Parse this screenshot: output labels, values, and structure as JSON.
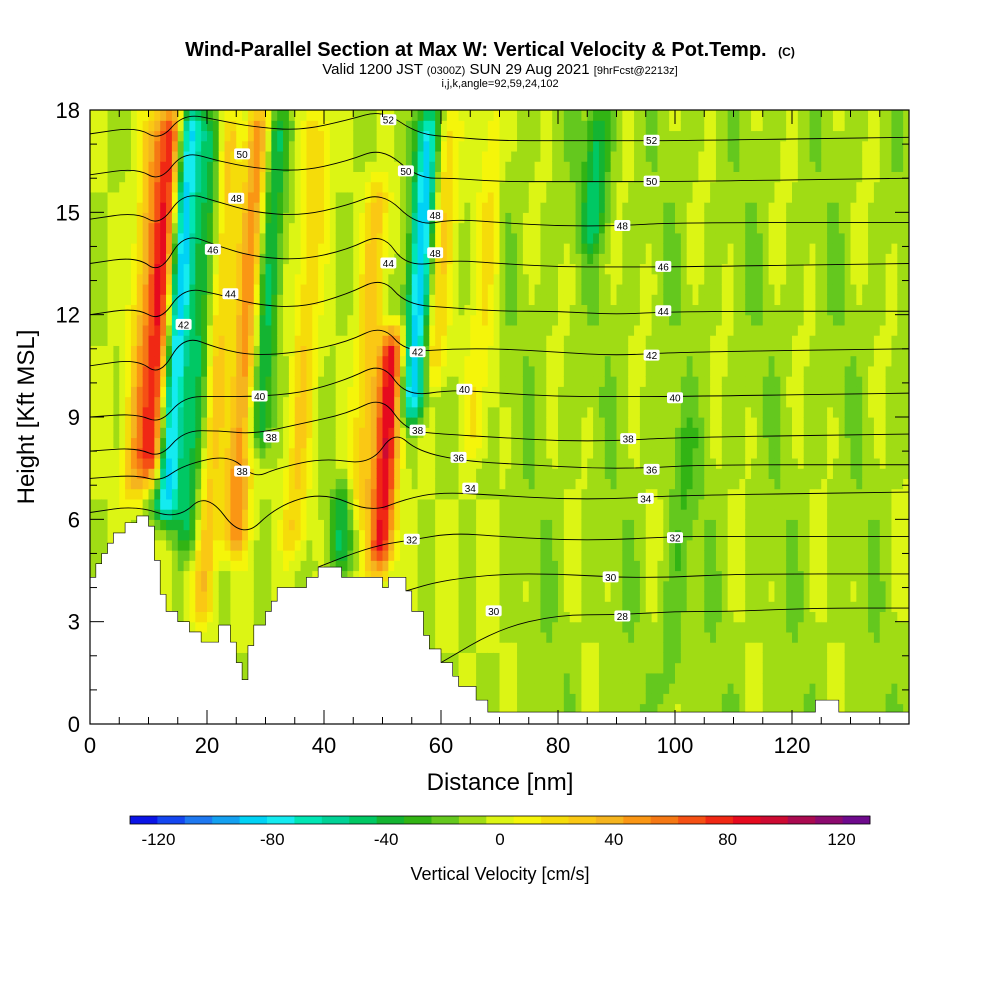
{
  "chart_data": {
    "type": "heatmap",
    "title": "Wind-Parallel Section at Max W: Vertical Velocity & Pot.Temp.",
    "title_mark": "(C)",
    "subtitle_parts": [
      "Valid 1200 JST ",
      "(0300Z)",
      " SUN 29 Aug 2021 ",
      "[9hrFcst@2213z]"
    ],
    "subtitle2": "i,j,k,angle=92,59,24,102",
    "xlabel": "Distance [nm]",
    "ylabel": "Height [Kft MSL]",
    "xlim": [
      0,
      140
    ],
    "ylim": [
      0,
      18
    ],
    "xticks": [
      0,
      20,
      40,
      60,
      80,
      100,
      120
    ],
    "yticks": [
      0,
      3,
      6,
      9,
      12,
      15,
      18
    ],
    "grid": false,
    "colorbar": {
      "label": "Vertical Velocity [cm/s]",
      "range": [
        -130,
        130
      ],
      "step": 10,
      "ticks": [
        -120,
        -80,
        -40,
        0,
        40,
        80,
        120
      ],
      "colors": [
        "#0a14e6",
        "#1446f0",
        "#1e78f0",
        "#14a0f0",
        "#00d2f5",
        "#14ebf0",
        "#00e6b4",
        "#00d296",
        "#00c864",
        "#14b432",
        "#32b414",
        "#64c81e",
        "#a0dc14",
        "#dcf514",
        "#f5f50a",
        "#f5dc0a",
        "#fac814",
        "#f5b41e",
        "#fa9614",
        "#f57814",
        "#f55014",
        "#f02814",
        "#e60a1e",
        "#cd0a32",
        "#aa0a50",
        "#8c0a6e",
        "#6e0a8c"
      ]
    },
    "terrain": [
      [
        0,
        4.3
      ],
      [
        1,
        4.3
      ],
      [
        1,
        4.7
      ],
      [
        2,
        4.7
      ],
      [
        2,
        5.0
      ],
      [
        3,
        5.0
      ],
      [
        3,
        5.3
      ],
      [
        4,
        5.3
      ],
      [
        4,
        5.6
      ],
      [
        6,
        5.6
      ],
      [
        6,
        5.9
      ],
      [
        8,
        5.9
      ],
      [
        8,
        6.1
      ],
      [
        10,
        6.1
      ],
      [
        10,
        5.8
      ],
      [
        11,
        5.8
      ],
      [
        11,
        4.8
      ],
      [
        12,
        4.8
      ],
      [
        12,
        3.8
      ],
      [
        13,
        3.8
      ],
      [
        13,
        3.3
      ],
      [
        15,
        3.3
      ],
      [
        15,
        3.0
      ],
      [
        17,
        3.0
      ],
      [
        17,
        2.7
      ],
      [
        19,
        2.7
      ],
      [
        19,
        2.4
      ],
      [
        22,
        2.4
      ],
      [
        22,
        2.9
      ],
      [
        24,
        2.9
      ],
      [
        24,
        2.4
      ],
      [
        25,
        2.4
      ],
      [
        25,
        1.8
      ],
      [
        26,
        1.8
      ],
      [
        26,
        1.3
      ],
      [
        27,
        1.3
      ],
      [
        27,
        2.3
      ],
      [
        28,
        2.3
      ],
      [
        28,
        2.9
      ],
      [
        30,
        2.9
      ],
      [
        30,
        3.3
      ],
      [
        31,
        3.3
      ],
      [
        31,
        3.6
      ],
      [
        32,
        3.6
      ],
      [
        32,
        4.0
      ],
      [
        37,
        4.0
      ],
      [
        37,
        4.3
      ],
      [
        39,
        4.3
      ],
      [
        39,
        4.6
      ],
      [
        43,
        4.6
      ],
      [
        43,
        4.3
      ],
      [
        50,
        4.3
      ],
      [
        50,
        4.0
      ],
      [
        51,
        4.0
      ],
      [
        51,
        4.3
      ],
      [
        54,
        4.3
      ],
      [
        54,
        3.9
      ],
      [
        55,
        3.9
      ],
      [
        55,
        3.3
      ],
      [
        57,
        3.3
      ],
      [
        57,
        2.6
      ],
      [
        58,
        2.6
      ],
      [
        58,
        2.2
      ],
      [
        60,
        2.2
      ],
      [
        60,
        1.8
      ],
      [
        62,
        1.8
      ],
      [
        62,
        1.4
      ],
      [
        63,
        1.4
      ],
      [
        63,
        1.1
      ],
      [
        66,
        1.1
      ],
      [
        66,
        0.7
      ],
      [
        68,
        0.7
      ],
      [
        68,
        0.35
      ],
      [
        124,
        0.35
      ],
      [
        124,
        0.7
      ],
      [
        128,
        0.7
      ],
      [
        128,
        0.35
      ],
      [
        140,
        0.35
      ]
    ],
    "updraft_cores": [
      {
        "x": 11,
        "hi": 18,
        "lo": 7.2,
        "w": 90
      },
      {
        "x": 26,
        "hi": 18,
        "lo": 5.0,
        "w": 60
      },
      {
        "x": 51,
        "hi": 11.5,
        "lo": 4.5,
        "w": 95
      },
      {
        "x": 8,
        "hi": 18,
        "lo": 6.5,
        "w": 40
      },
      {
        "x": 47,
        "hi": 16,
        "lo": 6.0,
        "w": 35
      },
      {
        "x": 58,
        "hi": 18,
        "lo": 10.0,
        "w": 35
      },
      {
        "x": 36,
        "hi": 18,
        "lo": 5.0,
        "w": 30
      },
      {
        "x": 21,
        "hi": 18,
        "lo": 3.0,
        "w": 35
      },
      {
        "x": 66,
        "hi": 18,
        "lo": 8.0,
        "w": 20
      }
    ],
    "downdraft_cores": [
      {
        "x": 14,
        "hi": 18,
        "lo": 6.0,
        "w": -90
      },
      {
        "x": 55,
        "hi": 18,
        "lo": 9.0,
        "w": -90
      },
      {
        "x": 29,
        "hi": 18,
        "lo": 8.0,
        "w": -45
      },
      {
        "x": 18,
        "hi": 18,
        "lo": 5.0,
        "w": -40
      },
      {
        "x": 44,
        "hi": 7.0,
        "lo": 4.5,
        "w": -40
      },
      {
        "x": 84,
        "hi": 18,
        "lo": 14.0,
        "w": -40
      },
      {
        "x": 102,
        "hi": 9.0,
        "lo": 0.5,
        "w": -15
      }
    ],
    "theta_contours": [
      {
        "label": "28",
        "lx": 91,
        "ly": 3.15,
        "pts": [
          [
            60,
            1.8
          ],
          [
            70,
            2.8
          ],
          [
            80,
            3.2
          ],
          [
            90,
            3.2
          ],
          [
            100,
            3.3
          ],
          [
            110,
            3.3
          ],
          [
            124,
            3.4
          ],
          [
            140,
            3.4
          ]
        ]
      },
      {
        "label": "30",
        "lx": 89,
        "ly": 4.3,
        "pts": [
          [
            54,
            3.9
          ],
          [
            60,
            4.2
          ],
          [
            70,
            4.4
          ],
          [
            80,
            4.4
          ],
          [
            90,
            4.3
          ],
          [
            100,
            4.3
          ],
          [
            110,
            4.4
          ],
          [
            140,
            4.4
          ]
        ]
      },
      {
        "label": "32",
        "lx": 100,
        "ly": 5.45,
        "pts": [
          [
            39,
            4.6
          ],
          [
            48,
            5.2
          ],
          [
            55,
            5.4
          ],
          [
            62,
            5.6
          ],
          [
            70,
            5.5
          ],
          [
            80,
            5.4
          ],
          [
            90,
            5.4
          ],
          [
            100,
            5.5
          ],
          [
            110,
            5.5
          ],
          [
            140,
            5.5
          ]
        ]
      },
      {
        "label": "34",
        "lx": 95,
        "ly": 6.6,
        "pts": [
          [
            0,
            6.2
          ],
          [
            8,
            6.4
          ],
          [
            15,
            6.0
          ],
          [
            20,
            6.8
          ],
          [
            26,
            5.4
          ],
          [
            32,
            6.4
          ],
          [
            40,
            6.8
          ],
          [
            48,
            6.2
          ],
          [
            54,
            6.6
          ],
          [
            60,
            6.8
          ],
          [
            70,
            6.7
          ],
          [
            80,
            6.6
          ],
          [
            90,
            6.6
          ],
          [
            100,
            6.7
          ],
          [
            140,
            6.8
          ]
        ]
      },
      {
        "label": "36",
        "lx": 96,
        "ly": 7.45,
        "pts": [
          [
            0,
            7.2
          ],
          [
            8,
            7.3
          ],
          [
            12,
            7.1
          ],
          [
            16,
            7.6
          ],
          [
            24,
            7.9
          ],
          [
            28,
            7.2
          ],
          [
            32,
            7.5
          ],
          [
            40,
            7.8
          ],
          [
            48,
            7.6
          ],
          [
            52,
            8.6
          ],
          [
            56,
            8.0
          ],
          [
            64,
            7.7
          ],
          [
            75,
            7.6
          ],
          [
            85,
            7.5
          ],
          [
            95,
            7.5
          ],
          [
            105,
            7.6
          ],
          [
            140,
            7.6
          ]
        ]
      },
      {
        "label": "38",
        "lx": 92,
        "ly": 8.35,
        "pts": [
          [
            0,
            8.0
          ],
          [
            8,
            8.1
          ],
          [
            12,
            7.8
          ],
          [
            16,
            8.6
          ],
          [
            22,
            8.6
          ],
          [
            28,
            8.5
          ],
          [
            36,
            8.8
          ],
          [
            44,
            9.1
          ],
          [
            50,
            9.6
          ],
          [
            54,
            8.6
          ],
          [
            60,
            8.5
          ],
          [
            70,
            8.4
          ],
          [
            80,
            8.3
          ],
          [
            90,
            8.3
          ],
          [
            100,
            8.4
          ],
          [
            140,
            8.5
          ]
        ]
      },
      {
        "label": "40",
        "lx": 100,
        "ly": 9.55,
        "pts": [
          [
            0,
            9.0
          ],
          [
            8,
            9.1
          ],
          [
            12,
            8.8
          ],
          [
            16,
            9.6
          ],
          [
            22,
            9.6
          ],
          [
            28,
            9.6
          ],
          [
            36,
            9.7
          ],
          [
            44,
            10.1
          ],
          [
            50,
            10.6
          ],
          [
            54,
            9.6
          ],
          [
            62,
            9.8
          ],
          [
            70,
            9.7
          ],
          [
            80,
            9.6
          ],
          [
            90,
            9.6
          ],
          [
            100,
            9.6
          ],
          [
            140,
            9.7
          ]
        ]
      },
      {
        "label": "42",
        "lx": 96,
        "ly": 10.8,
        "pts": [
          [
            0,
            10.5
          ],
          [
            8,
            10.7
          ],
          [
            12,
            10.2
          ],
          [
            16,
            11.4
          ],
          [
            22,
            11.0
          ],
          [
            28,
            10.8
          ],
          [
            36,
            10.9
          ],
          [
            44,
            11.2
          ],
          [
            50,
            11.7
          ],
          [
            54,
            10.9
          ],
          [
            62,
            11.0
          ],
          [
            70,
            11.0
          ],
          [
            80,
            10.9
          ],
          [
            90,
            10.8
          ],
          [
            100,
            10.9
          ],
          [
            140,
            11.0
          ]
        ]
      },
      {
        "label": "44",
        "lx": 98,
        "ly": 12.1,
        "pts": [
          [
            0,
            12.0
          ],
          [
            8,
            12.2
          ],
          [
            12,
            11.8
          ],
          [
            16,
            12.8
          ],
          [
            22,
            12.6
          ],
          [
            28,
            12.3
          ],
          [
            36,
            12.2
          ],
          [
            44,
            12.6
          ],
          [
            50,
            13.1
          ],
          [
            54,
            12.3
          ],
          [
            62,
            12.2
          ],
          [
            70,
            12.1
          ],
          [
            80,
            12.1
          ],
          [
            90,
            12.0
          ],
          [
            100,
            12.1
          ],
          [
            140,
            12.1
          ]
        ]
      },
      {
        "label": "46",
        "lx": 98,
        "ly": 13.4,
        "pts": [
          [
            0,
            13.5
          ],
          [
            8,
            13.7
          ],
          [
            12,
            13.2
          ],
          [
            16,
            14.4
          ],
          [
            22,
            14.0
          ],
          [
            28,
            13.7
          ],
          [
            36,
            13.6
          ],
          [
            44,
            13.9
          ],
          [
            50,
            14.4
          ],
          [
            54,
            13.4
          ],
          [
            62,
            13.6
          ],
          [
            70,
            13.5
          ],
          [
            80,
            13.4
          ],
          [
            90,
            13.4
          ],
          [
            100,
            13.4
          ],
          [
            140,
            13.5
          ]
        ]
      },
      {
        "label": "48",
        "lx": 91,
        "ly": 14.6,
        "pts": [
          [
            0,
            14.8
          ],
          [
            8,
            15.0
          ],
          [
            12,
            14.6
          ],
          [
            16,
            15.6
          ],
          [
            22,
            15.3
          ],
          [
            28,
            15.0
          ],
          [
            36,
            14.9
          ],
          [
            44,
            15.2
          ],
          [
            50,
            15.6
          ],
          [
            56,
            14.6
          ],
          [
            62,
            14.8
          ],
          [
            70,
            14.7
          ],
          [
            80,
            14.6
          ],
          [
            90,
            14.6
          ],
          [
            100,
            14.7
          ],
          [
            140,
            14.7
          ]
        ]
      },
      {
        "label": "50",
        "lx": 96,
        "ly": 15.9,
        "pts": [
          [
            0,
            16.1
          ],
          [
            8,
            16.3
          ],
          [
            12,
            15.9
          ],
          [
            16,
            16.8
          ],
          [
            22,
            16.5
          ],
          [
            28,
            16.3
          ],
          [
            36,
            16.2
          ],
          [
            44,
            16.5
          ],
          [
            50,
            16.9
          ],
          [
            56,
            16.0
          ],
          [
            62,
            16.0
          ],
          [
            70,
            15.9
          ],
          [
            80,
            15.9
          ],
          [
            90,
            15.9
          ],
          [
            100,
            15.9
          ],
          [
            140,
            16.0
          ]
        ]
      },
      {
        "label": "52",
        "lx": 96,
        "ly": 17.1,
        "pts": [
          [
            0,
            17.3
          ],
          [
            8,
            17.5
          ],
          [
            12,
            17.1
          ],
          [
            16,
            17.9
          ],
          [
            22,
            17.7
          ],
          [
            28,
            17.5
          ],
          [
            36,
            17.4
          ],
          [
            44,
            17.7
          ],
          [
            50,
            18.0
          ],
          [
            56,
            17.3
          ],
          [
            62,
            17.2
          ],
          [
            70,
            17.1
          ],
          [
            80,
            17.1
          ],
          [
            90,
            17.1
          ],
          [
            100,
            17.1
          ],
          [
            140,
            17.2
          ]
        ]
      }
    ],
    "extra_theta_labels": [
      {
        "label": "38",
        "x": 26,
        "y": 7.4
      },
      {
        "label": "38",
        "x": 31,
        "y": 8.4
      },
      {
        "label": "40",
        "x": 29,
        "y": 9.6
      },
      {
        "label": "42",
        "x": 16,
        "y": 11.7
      },
      {
        "label": "44",
        "x": 24,
        "y": 12.6
      },
      {
        "label": "46",
        "x": 21,
        "y": 13.9
      },
      {
        "label": "48",
        "x": 25,
        "y": 15.4
      },
      {
        "label": "50",
        "x": 26,
        "y": 16.7
      },
      {
        "label": "52",
        "x": 51,
        "y": 17.7
      },
      {
        "label": "50",
        "x": 54,
        "y": 16.2
      },
      {
        "label": "48",
        "x": 59,
        "y": 14.9
      },
      {
        "label": "48",
        "x": 59,
        "y": 13.8
      },
      {
        "label": "44",
        "x": 51,
        "y": 13.5
      },
      {
        "label": "42",
        "x": 56,
        "y": 10.9
      },
      {
        "label": "40",
        "x": 64,
        "y": 9.8
      },
      {
        "label": "38",
        "x": 56,
        "y": 8.6
      },
      {
        "label": "36",
        "x": 63,
        "y": 7.8
      },
      {
        "label": "34",
        "x": 65,
        "y": 6.9
      },
      {
        "label": "32",
        "x": 55,
        "y": 5.4
      },
      {
        "label": "30",
        "x": 69,
        "y": 3.3
      }
    ]
  }
}
